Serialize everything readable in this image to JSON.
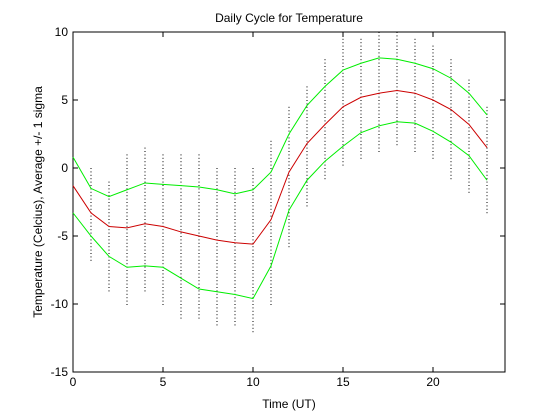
{
  "chart_data": {
    "type": "line",
    "title": "Daily Cycle for Temperature",
    "xlabel": "Time (UT)",
    "ylabel": "Temperature (Celcius), Average +/- 1 sigma",
    "xlim": [
      0,
      24
    ],
    "ylim": [
      -15,
      10
    ],
    "xticks": [
      0,
      5,
      10,
      15,
      20
    ],
    "yticks": [
      -15,
      -10,
      -5,
      0,
      5,
      10
    ],
    "xtick_labels": [
      "0",
      "5",
      "10",
      "15",
      "20"
    ],
    "ytick_labels": [
      "-15",
      "-10",
      "-5",
      "0",
      "5",
      "10"
    ],
    "grid": false,
    "x": [
      0,
      1,
      2,
      3,
      4,
      5,
      6,
      7,
      8,
      9,
      10,
      11,
      12,
      13,
      14,
      15,
      16,
      17,
      18,
      19,
      20,
      21,
      22,
      23
    ],
    "series": [
      {
        "role": "average",
        "color": "#cc0000",
        "values": [
          -1.3,
          -3.3,
          -4.3,
          -4.4,
          -4.1,
          -4.3,
          -4.7,
          -5.0,
          -5.3,
          -5.5,
          -5.6,
          -3.8,
          -0.3,
          1.8,
          3.2,
          4.5,
          5.2,
          5.5,
          5.7,
          5.5,
          5.0,
          4.3,
          3.2,
          1.5
        ]
      },
      {
        "role": "average + 1 sigma",
        "color": "#00ee00",
        "values": [
          0.8,
          -1.5,
          -2.1,
          -1.6,
          -1.1,
          -1.2,
          -1.3,
          -1.4,
          -1.6,
          -1.9,
          -1.6,
          -0.3,
          2.5,
          4.6,
          6.0,
          7.2,
          7.7,
          8.1,
          8.0,
          7.7,
          7.3,
          6.6,
          5.5,
          3.9
        ]
      },
      {
        "role": "average - 1 sigma",
        "color": "#00ee00",
        "values": [
          -3.3,
          -5.0,
          -6.5,
          -7.3,
          -7.2,
          -7.3,
          -8.1,
          -8.9,
          -9.1,
          -9.3,
          -9.6,
          -7.2,
          -3.1,
          -0.9,
          0.5,
          1.6,
          2.6,
          3.1,
          3.4,
          3.3,
          2.7,
          1.9,
          0.9,
          -0.9
        ]
      }
    ],
    "scatter": {
      "color": "#000000",
      "description_values": "per-hour vertical spread of individual observations",
      "ranges": [
        [
          -3,
          1
        ],
        [
          -7,
          0
        ],
        [
          -9,
          -1
        ],
        [
          -10,
          1
        ],
        [
          -9,
          1.5
        ],
        [
          -10,
          1
        ],
        [
          -11,
          1
        ],
        [
          -11,
          1
        ],
        [
          -11.5,
          0
        ],
        [
          -11.5,
          0
        ],
        [
          -12,
          0
        ],
        [
          -10,
          2
        ],
        [
          -6,
          4.5
        ],
        [
          -3,
          6
        ],
        [
          -1,
          8
        ],
        [
          0,
          9.5
        ],
        [
          0.5,
          9.5
        ],
        [
          1,
          10
        ],
        [
          1.5,
          10
        ],
        [
          1,
          9.5
        ],
        [
          0.5,
          9
        ],
        [
          -1,
          8
        ],
        [
          -2,
          6.5
        ],
        [
          -3.5,
          4.5
        ]
      ]
    }
  }
}
